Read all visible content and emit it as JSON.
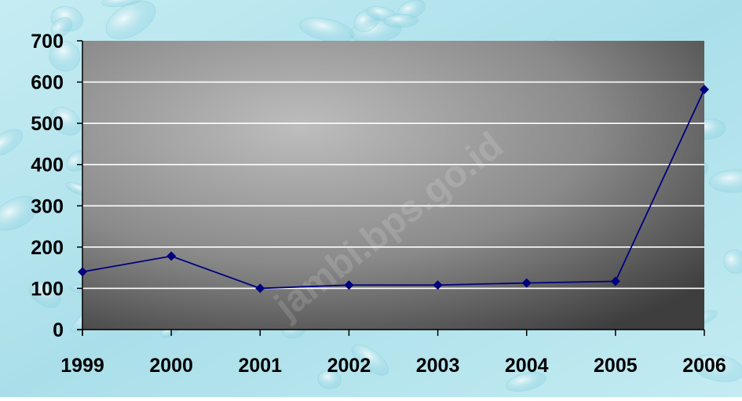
{
  "chart_data": {
    "type": "line",
    "title": "",
    "xlabel": "",
    "ylabel": "",
    "categories": [
      "1999",
      "2000",
      "2001",
      "2002",
      "2003",
      "2004",
      "2005",
      "2006"
    ],
    "series": [
      {
        "values": [
          140,
          178,
          100,
          108,
          108,
          113,
          117,
          582
        ]
      }
    ],
    "ylim": [
      0,
      700
    ],
    "yticks": [
      "0",
      "100",
      "200",
      "300",
      "400",
      "500",
      "600",
      "700"
    ],
    "grid": true,
    "legend": "none",
    "colors": {
      "line": "#00007f",
      "marker": "#00007f",
      "grid": "#ffffff",
      "plot_light": "#bdbdbd",
      "plot_dark": "#3e3e3e",
      "background": "#b7e3ec"
    }
  },
  "watermark": "jambi.bps.go.id"
}
